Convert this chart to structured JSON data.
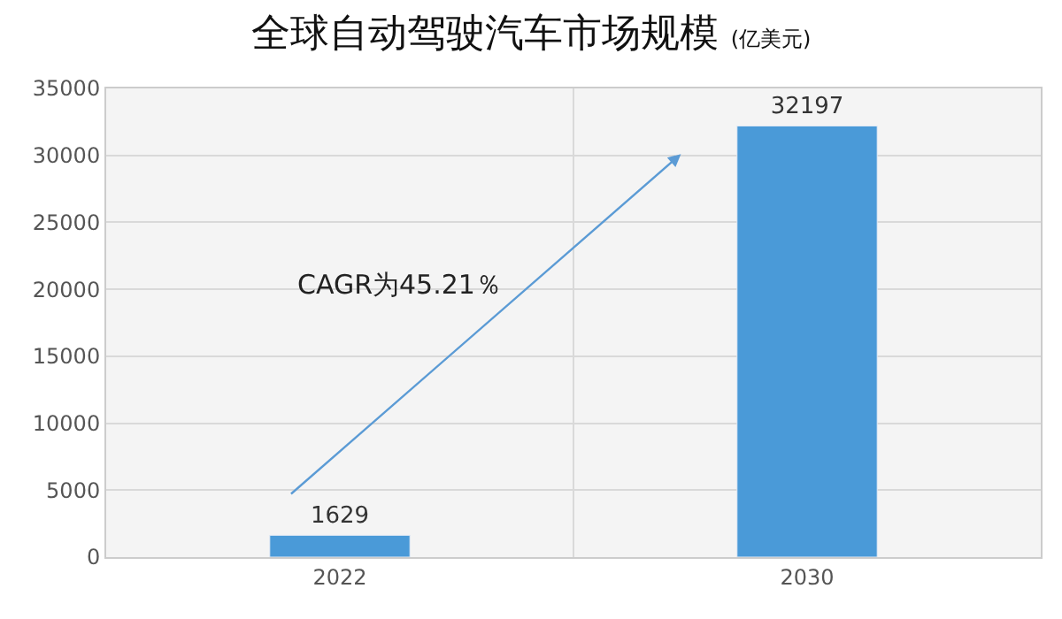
{
  "chart_data": {
    "type": "bar",
    "title": "全球自动驾驶汽车市场规模",
    "subtitle": "(亿美元)",
    "categories": [
      "2022",
      "2030"
    ],
    "values": [
      1629,
      32197
    ],
    "color": "#4a9ad8",
    "ylim": [
      0,
      35000
    ],
    "yticks": [
      0,
      5000,
      10000,
      15000,
      20000,
      25000,
      30000,
      35000
    ],
    "grid": true,
    "data_labels": true,
    "annotations": [
      "CAGR为45.21％"
    ]
  }
}
